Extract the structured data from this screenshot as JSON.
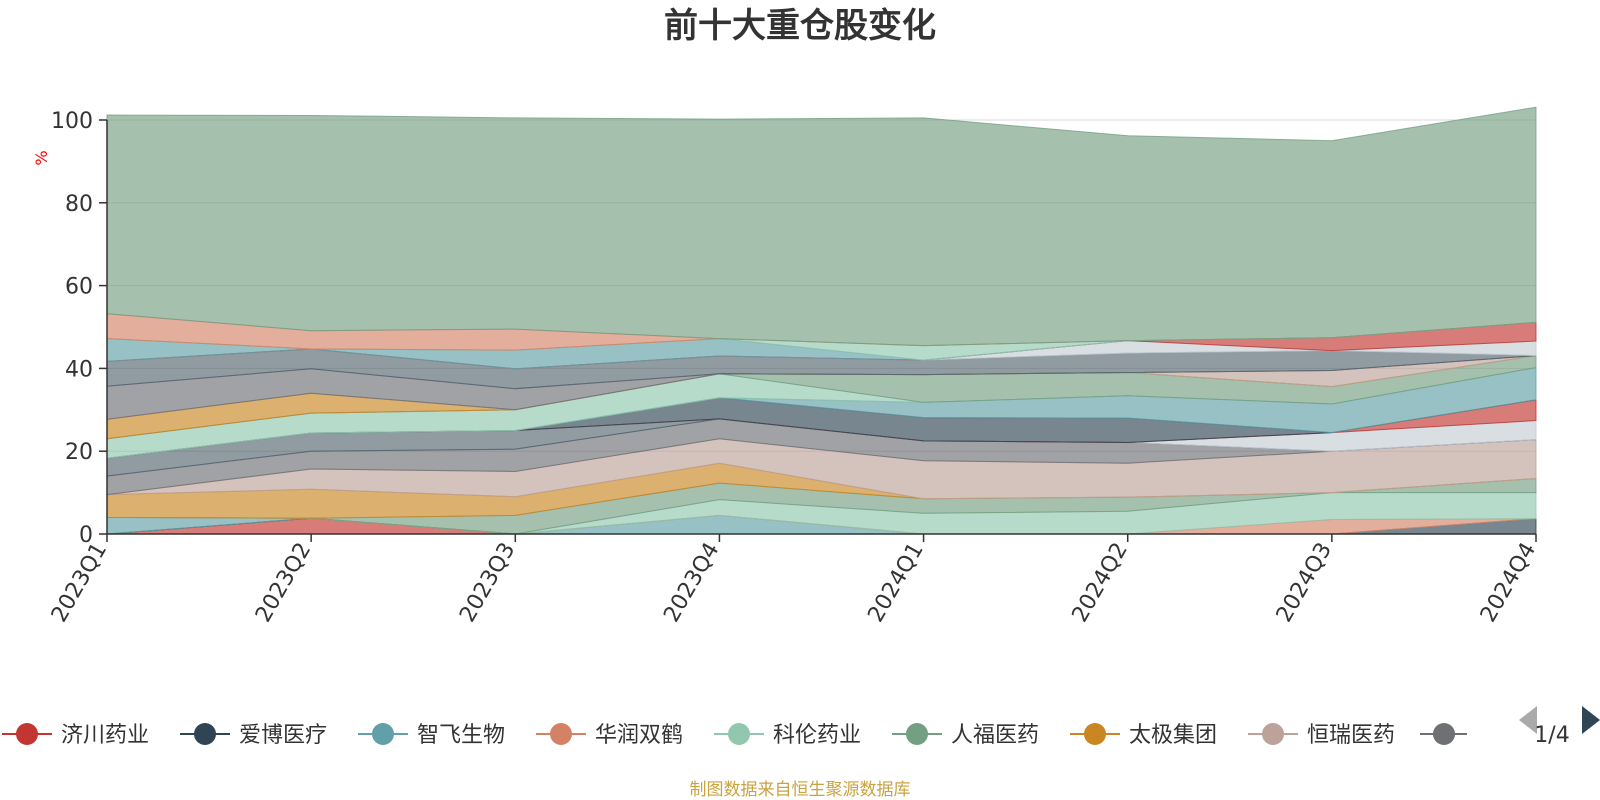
{
  "chart_data": {
    "type": "area",
    "title": "前十大重仓股变化",
    "ylabel": "%",
    "ylim": [
      0,
      100
    ],
    "yticks": [
      0,
      20,
      40,
      60,
      80,
      100
    ],
    "categories": [
      "2023Q1",
      "2023Q2",
      "2023Q3",
      "2023Q4",
      "2024Q1",
      "2024Q2",
      "2024Q3",
      "2024Q4"
    ],
    "grid": true,
    "legend_position": "bottom",
    "legend_page": "1/4",
    "footer": "制图数据来自恒生聚源数据库",
    "series": [
      {
        "name": "济川药业",
        "color": "#c23531",
        "values": [
          0.0,
          3.8,
          0.0,
          0.0,
          0.0,
          0.0,
          0.0,
          0.0
        ]
      },
      {
        "name": "爱博医疗",
        "color": "#2f4554",
        "values": [
          0.0,
          0.0,
          0.0,
          0.0,
          0.0,
          0.0,
          0.0,
          3.7
        ]
      },
      {
        "name": "智飞生物",
        "color": "#61a0a8",
        "values": [
          4.0,
          0.0,
          0.0,
          4.5,
          0.0,
          0.0,
          0.0,
          0.0
        ]
      },
      {
        "name": "华润双鹤",
        "color": "#d48265",
        "values": [
          0.0,
          0.0,
          0.0,
          0.0,
          0.0,
          0.0,
          3.5,
          0.0
        ]
      },
      {
        "name": "科伦药业",
        "color": "#91c7ae",
        "values": [
          0.0,
          0.0,
          0.0,
          3.8,
          5.0,
          5.5,
          6.5,
          6.3
        ]
      },
      {
        "name": "人福医药",
        "color": "#749f83",
        "values": [
          0.0,
          0.0,
          4.5,
          4.0,
          3.5,
          3.4,
          0.0,
          3.4
        ]
      },
      {
        "name": "太极集团",
        "color": "#ca8622",
        "values": [
          5.5,
          7.0,
          4.5,
          4.8,
          0.0,
          0.0,
          0.0,
          0.0
        ]
      },
      {
        "name": "恒瑞医药",
        "color": "#bda29a",
        "values": [
          0.0,
          4.9,
          6.1,
          5.9,
          9.2,
          8.2,
          10.0,
          9.4
        ]
      },
      {
        "name": "",
        "color": "#6e7074",
        "values": [
          4.5,
          4.3,
          5.4,
          4.8,
          4.8,
          5.0,
          0.0,
          0.0
        ]
      },
      {
        "name": "",
        "color": "#546570",
        "values": [
          4.3,
          4.4,
          4.5,
          0.0,
          0.0,
          0.0,
          0.0,
          0.0
        ]
      },
      {
        "name": "",
        "color": "#c4ccd3",
        "values": [
          0.0,
          0.0,
          0.0,
          0.0,
          0.0,
          0.0,
          4.5,
          4.6
        ]
      },
      {
        "name": "",
        "color": "#c23531",
        "values": [
          0.0,
          0.0,
          0.0,
          0.0,
          0.0,
          0.0,
          0.0,
          5.0
        ]
      },
      {
        "name": "",
        "color": "#2f4554",
        "values": [
          0.0,
          0.0,
          0.0,
          5.1,
          5.6,
          5.9,
          0.0,
          0.0
        ]
      },
      {
        "name": "",
        "color": "#61a0a8",
        "values": [
          0.0,
          0.0,
          0.0,
          0.0,
          3.7,
          5.4,
          6.9,
          7.8
        ]
      },
      {
        "name": "",
        "color": "#91c7ae",
        "values": [
          4.7,
          4.8,
          5.0,
          5.8,
          0.0,
          0.0,
          0.0,
          0.0
        ]
      },
      {
        "name": "",
        "color": "#749f83",
        "values": [
          0.0,
          0.0,
          0.0,
          0.0,
          6.7,
          5.6,
          4.2,
          2.9
        ]
      },
      {
        "name": "",
        "color": "#ca8622",
        "values": [
          4.7,
          4.8,
          0.0,
          0.0,
          0.0,
          0.0,
          0.0,
          0.0
        ]
      },
      {
        "name": "",
        "color": "#bda29a",
        "values": [
          0.0,
          0.0,
          0.0,
          0.0,
          0.0,
          0.0,
          3.9,
          0.0
        ]
      },
      {
        "name": "",
        "color": "#6e7074",
        "values": [
          8.0,
          5.9,
          5.1,
          0.0,
          0.0,
          0.0,
          0.0,
          0.0
        ]
      },
      {
        "name": "",
        "color": "#546570",
        "values": [
          6.0,
          4.8,
          4.8,
          4.3,
          3.5,
          4.7,
          4.8,
          0.0
        ]
      },
      {
        "name": "",
        "color": "#c4ccd3",
        "values": [
          0.0,
          0.0,
          0.0,
          0.0,
          0.0,
          3.0,
          0.0,
          3.5
        ]
      },
      {
        "name": "",
        "color": "#c23531",
        "values": [
          0.0,
          0.0,
          0.0,
          0.0,
          0.0,
          0.0,
          3.1,
          4.5
        ]
      },
      {
        "name": "",
        "color": "#61a0a8",
        "values": [
          5.5,
          0.0,
          4.5,
          4.2,
          0.0,
          0.0,
          0.0,
          0.0
        ]
      },
      {
        "name": "",
        "color": "#91c7ae",
        "values": [
          0.0,
          0.0,
          0.0,
          0.0,
          3.5,
          0.0,
          0.0,
          0.0
        ]
      },
      {
        "name": "",
        "color": "#d48265",
        "values": [
          6.0,
          4.4,
          5.1,
          0.0,
          0.0,
          0.0,
          0.0,
          0.0
        ]
      },
      {
        "name": "",
        "color": "#749f83",
        "values": [
          48.0,
          52.0,
          51.0,
          53.0,
          55.0,
          49.5,
          47.6,
          52.0
        ]
      }
    ]
  }
}
